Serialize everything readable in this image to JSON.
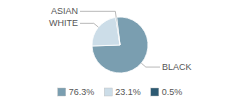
{
  "chart_data": {
    "type": "pie",
    "categories": [
      "BLACK",
      "WHITE",
      "ASIAN"
    ],
    "values": [
      76.3,
      23.1,
      0.5
    ],
    "value_labels": [
      "76.3%",
      "23.1%",
      "0.5%"
    ],
    "colors": [
      "#7a9eb0",
      "#ccdde8",
      "#2d5a72"
    ],
    "legend": "bottom"
  }
}
